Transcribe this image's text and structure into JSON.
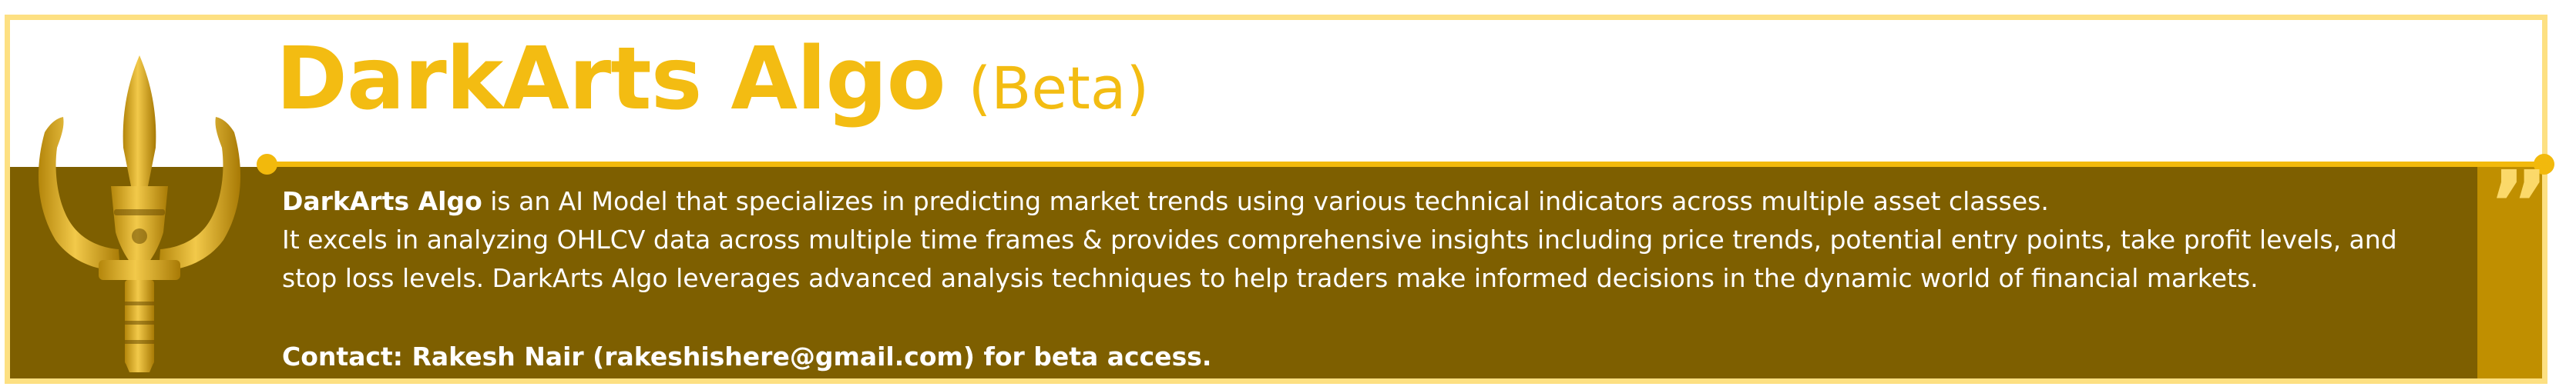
{
  "header": {
    "title": "DarkArts Algo",
    "subtitle": "(Beta)"
  },
  "description": {
    "name": "DarkArts Algo",
    "line1_rest": " is an AI Model that specializes in predicting market trends using various technical indicators across multiple asset classes.",
    "paragraph2": "It excels in analyzing OHLCV data across multiple time frames & provides comprehensive insights including price trends, potential entry points, take profit levels, and stop loss levels. DarkArts Algo leverages advanced analysis techniques to help traders make informed decisions in the dynamic world of financial markets."
  },
  "contact": {
    "text": "Contact: Rakesh Nair (rakeshishere@gmail.com) for beta access."
  },
  "decor": {
    "quote_glyph": "”",
    "logo_icon": "trident-icon",
    "quote_icon": "quote-icon"
  },
  "colors": {
    "gold": "#f3bc12",
    "brown": "#7e5f00",
    "dark_gold": "#c08f00",
    "pale_gold": "#fde082"
  }
}
